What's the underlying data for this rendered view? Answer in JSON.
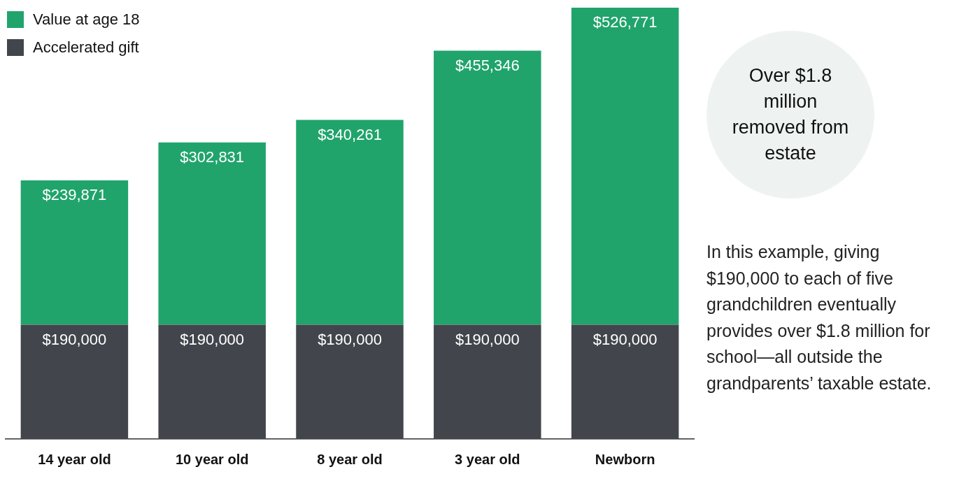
{
  "chart_data": {
    "type": "bar",
    "stacked": true,
    "categories": [
      "14 year old",
      "10 year old",
      "8 year old",
      "3 year old",
      "Newborn"
    ],
    "series": [
      {
        "name": "Accelerated gift",
        "color": "#42454c",
        "values": [
          190000,
          190000,
          190000,
          190000,
          190000
        ],
        "value_labels": [
          "$190,000",
          "$190,000",
          "$190,000",
          "$190,000",
          "$190,000"
        ]
      },
      {
        "name": "Value at age 18",
        "color": "#20a46b",
        "values": [
          239871,
          302831,
          340261,
          455346,
          526771
        ],
        "value_labels": [
          "$239,871",
          "$302,831",
          "$340,261",
          "$455,346",
          "$526,771"
        ]
      }
    ],
    "legend": "top left",
    "grid": false,
    "annotations": [
      "Over $1.8 million removed from estate",
      "In this example, giving $190,000 to each of five grandchildren eventually provides over $1.8 million for school—all outside the grandparents’ taxable estate."
    ]
  }
}
